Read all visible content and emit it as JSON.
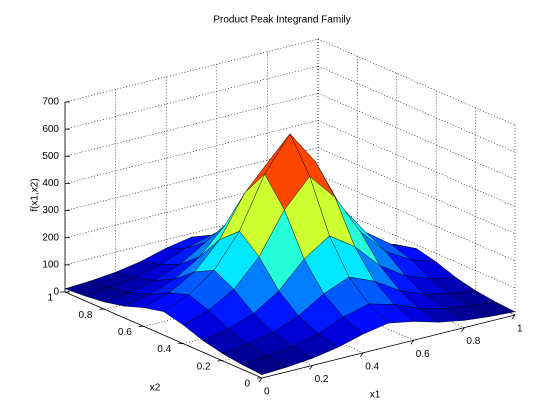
{
  "chart_data": {
    "type": "surface",
    "title": "Product Peak Integrand Family",
    "xlabel": "x1",
    "ylabel": "x2",
    "zlabel": "f(x1,x2)",
    "colormap": "jet",
    "grid": true,
    "x": [
      0,
      0.1,
      0.2,
      0.3,
      0.4,
      0.5,
      0.6,
      0.7,
      0.8,
      0.9,
      1
    ],
    "y": [
      0,
      0.1,
      0.2,
      0.3,
      0.4,
      0.5,
      0.6,
      0.7,
      0.8,
      0.9,
      1
    ],
    "z": [
      [
        11.9,
        17.2,
        26.5,
        43.1,
        69.0,
        86.2,
        69.0,
        43.1,
        26.5,
        17.2,
        11.9
      ],
      [
        17.2,
        25.0,
        38.5,
        62.5,
        100.0,
        125.0,
        100.0,
        62.5,
        38.5,
        25.0,
        17.2
      ],
      [
        26.5,
        38.5,
        59.2,
        96.2,
        153.8,
        192.3,
        153.8,
        96.2,
        59.2,
        38.5,
        26.5
      ],
      [
        43.1,
        62.5,
        96.2,
        156.3,
        250.0,
        312.5,
        250.0,
        156.3,
        96.2,
        62.5,
        43.1
      ],
      [
        69.0,
        100.0,
        153.8,
        250.0,
        400.0,
        500.0,
        400.0,
        250.0,
        153.8,
        100.0,
        69.0
      ],
      [
        86.2,
        125.0,
        192.3,
        312.5,
        500.0,
        625.0,
        500.0,
        312.5,
        192.3,
        125.0,
        86.2
      ],
      [
        69.0,
        100.0,
        153.8,
        250.0,
        400.0,
        500.0,
        400.0,
        250.0,
        153.8,
        100.0,
        69.0
      ],
      [
        43.1,
        62.5,
        96.2,
        156.3,
        250.0,
        312.5,
        250.0,
        156.3,
        96.2,
        62.5,
        43.1
      ],
      [
        26.5,
        38.5,
        59.2,
        96.2,
        153.8,
        192.3,
        153.8,
        96.2,
        59.2,
        38.5,
        26.5
      ],
      [
        17.2,
        25.0,
        38.5,
        62.5,
        100.0,
        125.0,
        100.0,
        62.5,
        38.5,
        25.0,
        17.2
      ],
      [
        11.9,
        17.2,
        26.5,
        43.1,
        69.0,
        86.2,
        69.0,
        43.1,
        26.5,
        17.2,
        11.9
      ]
    ],
    "xlim": [
      0,
      1
    ],
    "xticks": [
      0,
      0.2,
      0.4,
      0.6,
      0.8,
      1
    ],
    "ylim": [
      0,
      1
    ],
    "yticks": [
      0,
      0.2,
      0.4,
      0.6,
      0.8,
      1
    ],
    "zlim": [
      0,
      700
    ],
    "zticks": [
      0,
      100,
      200,
      300,
      400,
      500,
      600,
      700
    ]
  }
}
